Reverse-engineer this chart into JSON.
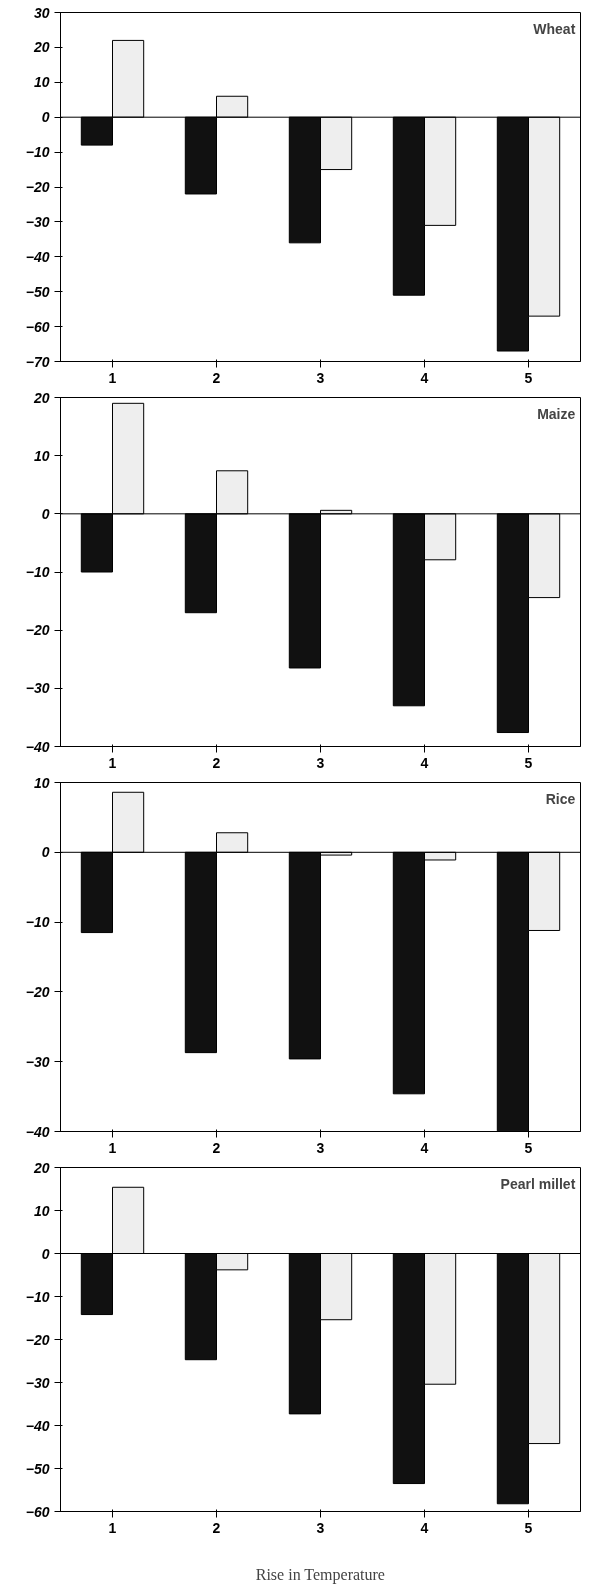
{
  "chart_data": [
    {
      "type": "bar",
      "title": "Wheat",
      "categories": [
        "1",
        "2",
        "3",
        "4",
        "5"
      ],
      "series": [
        {
          "color": "#111111",
          "values": [
            -8,
            -22,
            -36,
            -51,
            -67
          ]
        },
        {
          "color": "#eeeeee",
          "values": [
            22,
            6,
            -15,
            -31,
            -57
          ]
        }
      ],
      "ylim": [
        -70,
        30
      ],
      "yticks": [
        -70,
        -60,
        -50,
        -40,
        -30,
        -20,
        -10,
        0,
        10,
        20,
        30
      ],
      "ref_lines": [
        {
          "axis": "y",
          "value": 0
        }
      ],
      "grid": false
    },
    {
      "type": "bar",
      "title": "Maize",
      "categories": [
        "1",
        "2",
        "3",
        "4",
        "5"
      ],
      "series": [
        {
          "color": "#111111",
          "values": [
            -10,
            -17,
            -26.5,
            -33,
            -37.6
          ]
        },
        {
          "color": "#eeeeee",
          "values": [
            19,
            7.4,
            0.6,
            -7.9,
            -14.4
          ]
        }
      ],
      "ylim": [
        -40,
        20
      ],
      "yticks": [
        -40,
        -30,
        -20,
        -10,
        0,
        10,
        20
      ],
      "ref_lines": [
        {
          "axis": "y",
          "value": 0
        }
      ],
      "grid": false
    },
    {
      "type": "bar",
      "title": "Rice",
      "categories": [
        "1",
        "2",
        "3",
        "4",
        "5"
      ],
      "series": [
        {
          "color": "#111111",
          "values": [
            -11.5,
            -28.7,
            -29.6,
            -34.6,
            -39.9
          ]
        },
        {
          "color": "#eeeeee",
          "values": [
            8.6,
            2.8,
            -0.4,
            -1.1,
            -11.2
          ]
        }
      ],
      "ylim": [
        -40,
        10
      ],
      "yticks": [
        -40,
        -30,
        -20,
        -10,
        0,
        10
      ],
      "ref_lines": [
        {
          "axis": "y",
          "value": 0
        }
      ],
      "grid": false
    },
    {
      "type": "bar",
      "title": "Pearl millet",
      "xlabel": "Rise in Temperature",
      "categories": [
        "1",
        "2",
        "3",
        "4",
        "5"
      ],
      "series": [
        {
          "color": "#111111",
          "values": [
            -14.2,
            -24.7,
            -37.3,
            -53.5,
            -58.2
          ]
        },
        {
          "color": "#eeeeee",
          "values": [
            15.4,
            -3.8,
            -15.4,
            -30.4,
            -44.2
          ]
        }
      ],
      "ylim": [
        -60,
        20
      ],
      "yticks": [
        -60,
        -50,
        -40,
        -30,
        -20,
        -10,
        0,
        10,
        20
      ],
      "ref_lines": [
        {
          "axis": "y",
          "value": 0
        }
      ],
      "grid": false
    }
  ]
}
